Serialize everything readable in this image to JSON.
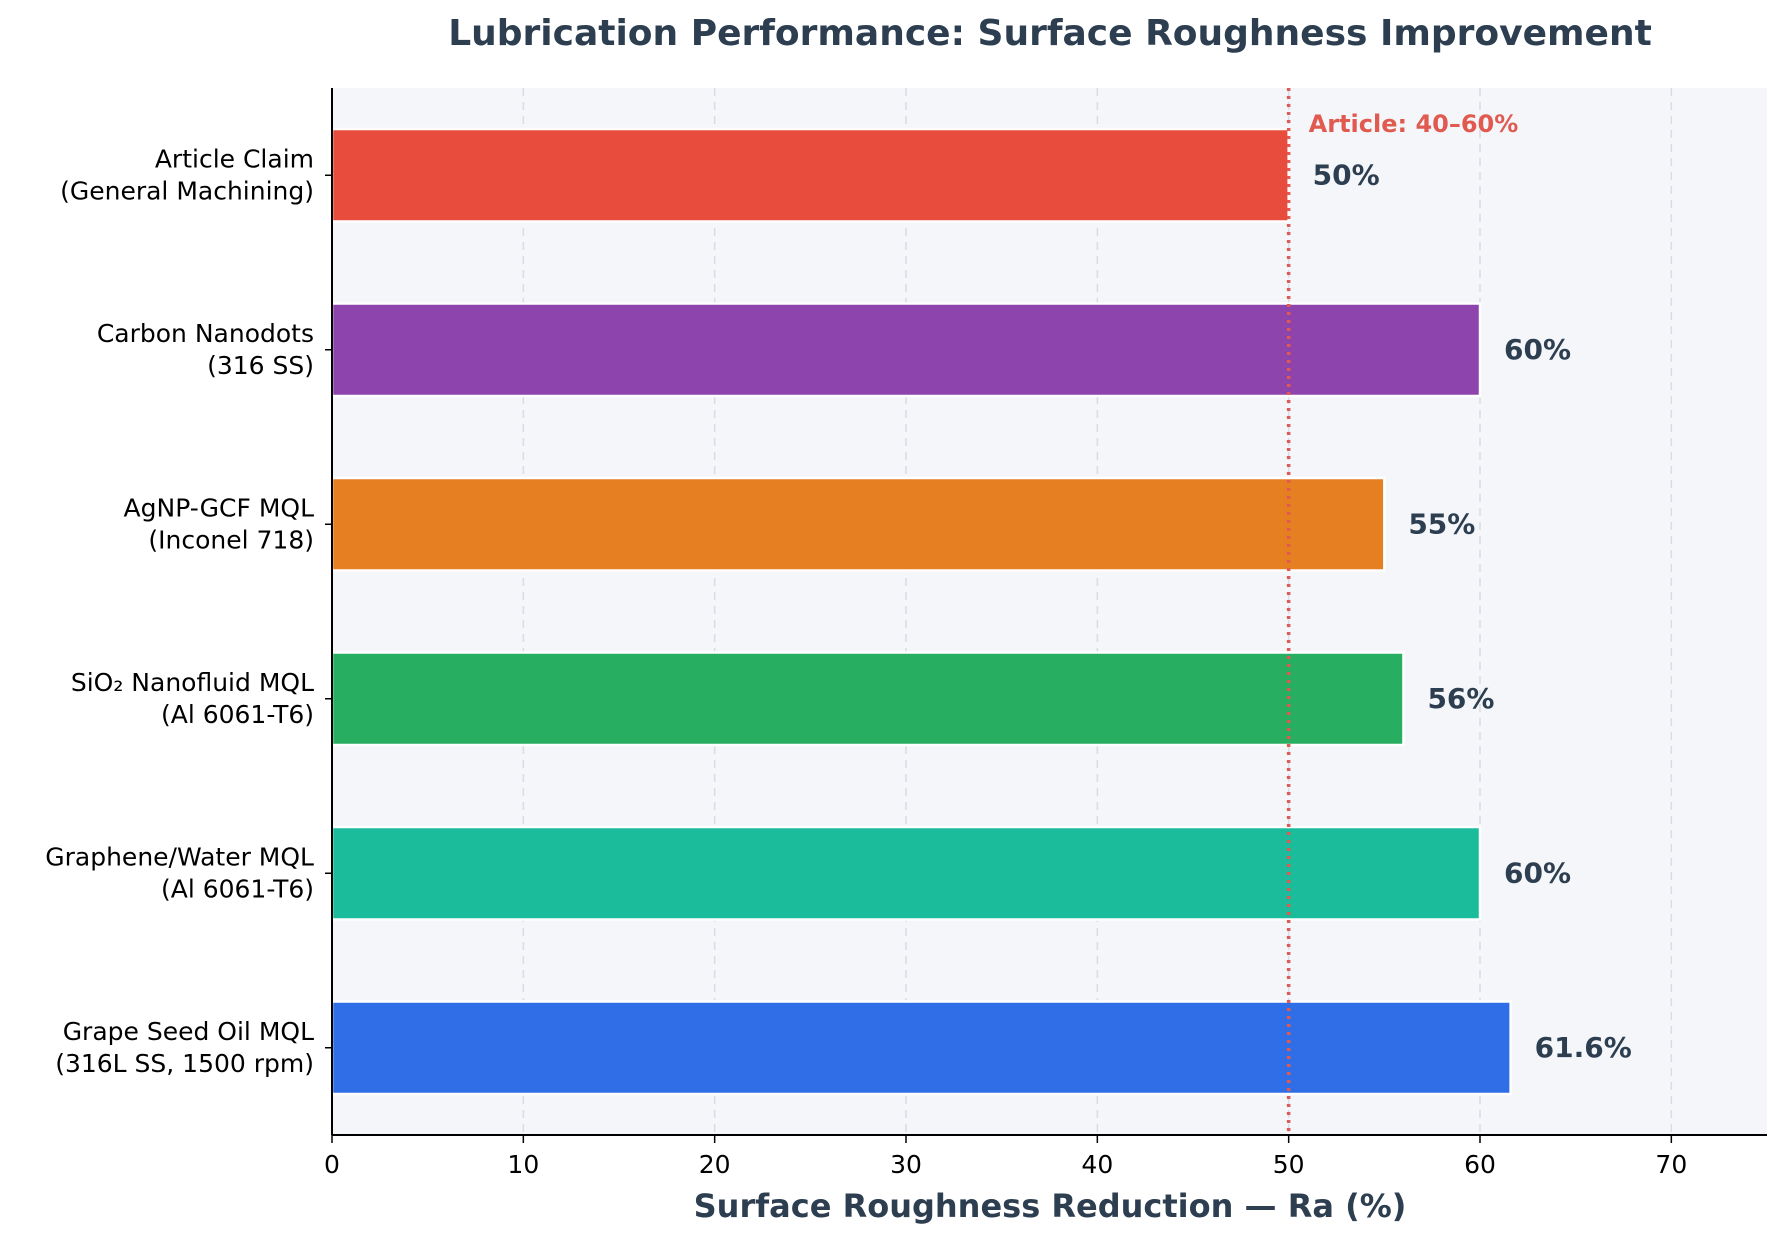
{
  "chart_data": {
    "type": "bar",
    "orientation": "horizontal",
    "title": "Lubrication Performance: Surface Roughness Improvement",
    "xlabel": "Surface Roughness Reduction — Ra (%)",
    "ylabel": "",
    "xlim": [
      0,
      75
    ],
    "xticks": [
      0,
      10,
      20,
      30,
      40,
      50,
      60,
      70
    ],
    "grid": "vertical-dashed",
    "categories": [
      [
        "Article Claim",
        "(General Machining)"
      ],
      [
        "Carbon Nanodots",
        "(316 SS)"
      ],
      [
        "AgNP-GCF MQL",
        "(Inconel 718)"
      ],
      [
        "SiO₂ Nanofluid MQL",
        "(Al 6061-T6)"
      ],
      [
        "Graphene/Water MQL",
        "(Al 6061-T6)"
      ],
      [
        "Grape Seed Oil MQL",
        "(316L SS, 1500 rpm)"
      ]
    ],
    "values": [
      50,
      60,
      55,
      56,
      60,
      61.6
    ],
    "value_labels": [
      "50%",
      "60%",
      "55%",
      "56%",
      "60%",
      "61.6%"
    ],
    "colors": [
      "#e74c3c",
      "#8e44ad",
      "#e67e22",
      "#27ae60",
      "#1abc9c",
      "#2f6ee6"
    ],
    "reference_line": {
      "value": 50,
      "label": "Article: 40–60%",
      "color": "#e05a50"
    },
    "plot_background": "#f4f6fa",
    "text_color": "#2c3e50"
  }
}
